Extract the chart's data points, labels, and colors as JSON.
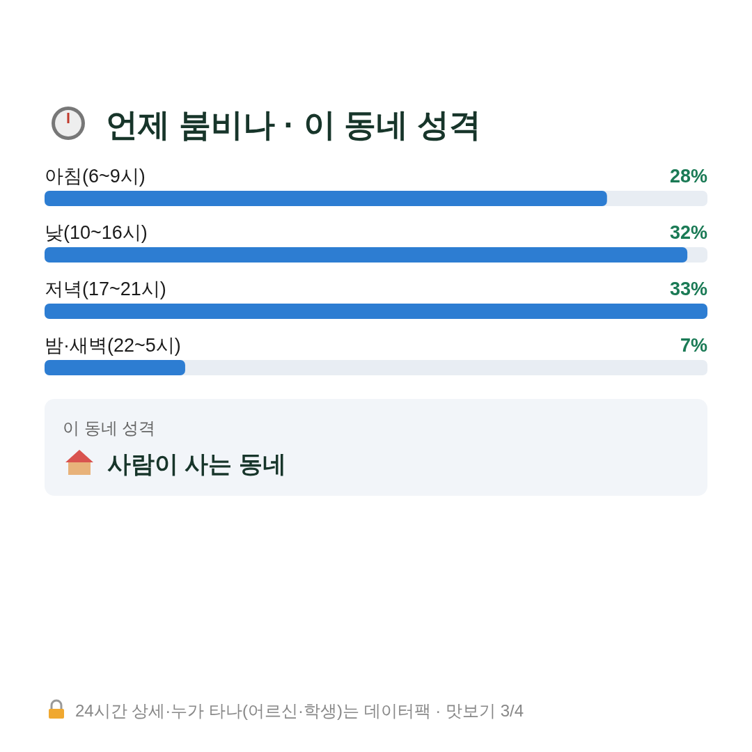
{
  "chart_data": {
    "type": "bar",
    "orientation": "horizontal",
    "title": "언제 붐비나 · 이 동네 성격",
    "categories": [
      "아침(6~9시)",
      "낮(10~16시)",
      "저녁(17~21시)",
      "밤·새벽(22~5시)"
    ],
    "values": [
      28,
      32,
      33,
      7
    ],
    "color": "#2d7dd2",
    "value_labels": [
      "28%",
      "32%",
      "33%",
      "7%"
    ],
    "annotations": [
      "이 동네 성격",
      "사람이 사는 동네",
      "24시간 상세·누가 타나(어르신·학생)는 데이터팩 · 맛보기 3/4"
    ]
  }
}
